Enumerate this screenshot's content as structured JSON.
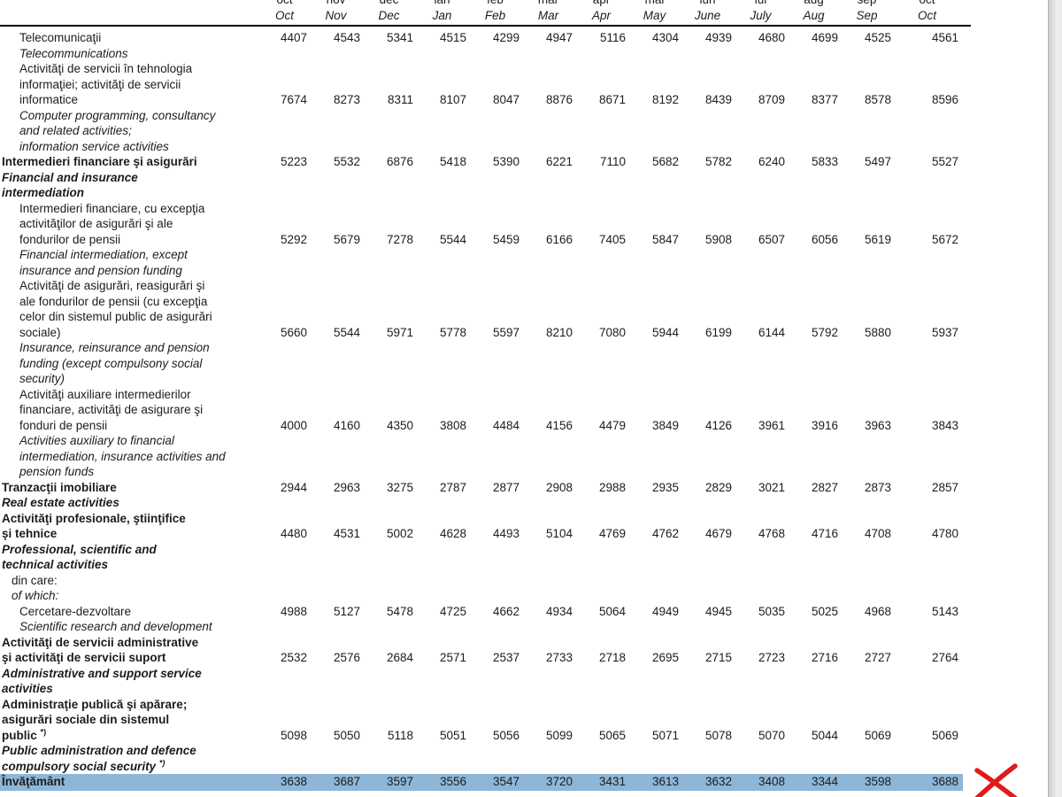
{
  "document": {
    "kind": "statistical-table-page",
    "language": "Romanian / English"
  },
  "colors": {
    "highlight_row": "#8db6d8",
    "annotation_x": "#e01b1b",
    "rule": "#000000"
  },
  "annotation": {
    "type": "red-x-mark"
  },
  "table": {
    "header": {
      "months_ro": [
        "oct",
        "nov",
        "dec",
        "ian",
        "feb",
        "mar",
        "apr",
        "mai",
        "iun",
        "iul",
        "aug",
        "sep",
        "oct"
      ],
      "months_en": [
        "Oct",
        "Nov",
        "Dec",
        "Jan",
        "Feb",
        "Mar",
        "Apr",
        "May",
        "June",
        "July",
        "Aug",
        "Sep",
        "Oct"
      ]
    },
    "rows": [
      {
        "indent": 1,
        "bold": false,
        "highlight": false,
        "ro": [
          "Telecomunicaţii"
        ],
        "en": [
          "Telecommunications"
        ],
        "values": [
          4407,
          4543,
          5341,
          4515,
          4299,
          4947,
          5116,
          4304,
          4939,
          4680,
          4699,
          4525,
          4561
        ]
      },
      {
        "indent": 1,
        "bold": false,
        "highlight": false,
        "ro": [
          "Activităţi de servicii în tehnologia",
          "informaţiei; activităţi de servicii",
          "informatice"
        ],
        "en": [
          "Computer programming, consultancy",
          "and related activities;",
          "information service activities"
        ],
        "values": [
          7674,
          8273,
          8311,
          8107,
          8047,
          8876,
          8671,
          8192,
          8439,
          8709,
          8377,
          8578,
          8596
        ]
      },
      {
        "indent": 0,
        "bold": true,
        "highlight": false,
        "ro": [
          "Intermedieri financiare şi asigurări"
        ],
        "en": [
          "Financial and insurance",
          "intermediation"
        ],
        "values": [
          5223,
          5532,
          6876,
          5418,
          5390,
          6221,
          7110,
          5682,
          5782,
          6240,
          5833,
          5497,
          5527
        ]
      },
      {
        "indent": 1,
        "bold": false,
        "highlight": false,
        "ro": [
          "Intermedieri financiare, cu excepţia",
          "activităţilor de asigurări şi ale",
          "fondurilor de pensii"
        ],
        "en": [
          "Financial intermediation, except",
          "insurance and pension funding"
        ],
        "values": [
          5292,
          5679,
          7278,
          5544,
          5459,
          6166,
          7405,
          5847,
          5908,
          6507,
          6056,
          5619,
          5672
        ]
      },
      {
        "indent": 1,
        "bold": false,
        "highlight": false,
        "ro": [
          "Activităţi de asigurări, reasigurări şi",
          "ale fondurilor de pensii (cu excepţia",
          "celor din sistemul public de asigurări",
          "sociale)"
        ],
        "en": [
          "Insurance, reinsurance and  pension",
          "funding (except compulsony social",
          "security)"
        ],
        "values": [
          5660,
          5544,
          5971,
          5778,
          5597,
          8210,
          7080,
          5944,
          6199,
          6144,
          5792,
          5880,
          5937
        ]
      },
      {
        "indent": 1,
        "bold": false,
        "highlight": false,
        "ro": [
          "Activităţi auxiliare intermedierilor",
          "financiare, activităţi de asigurare şi",
          "fonduri de pensii"
        ],
        "en": [
          "Activities auxiliary to financial",
          "intermediation, insurance activities and",
          "pension funds"
        ],
        "values": [
          4000,
          4160,
          4350,
          3808,
          4484,
          4156,
          4479,
          3849,
          4126,
          3961,
          3916,
          3963,
          3843
        ]
      },
      {
        "indent": 0,
        "bold": true,
        "highlight": false,
        "ro": [
          "Tranzacţii imobiliare"
        ],
        "en": [
          "Real estate activities"
        ],
        "values": [
          2944,
          2963,
          3275,
          2787,
          2877,
          2908,
          2988,
          2935,
          2829,
          3021,
          2827,
          2873,
          2857
        ]
      },
      {
        "indent": 0,
        "bold": true,
        "highlight": false,
        "ro": [
          "Activităţi profesionale, ştiinţifice",
          "şi tehnice"
        ],
        "en": [
          "Professional, scientific and",
          "technical activities"
        ],
        "values": [
          4480,
          4531,
          5002,
          4628,
          4493,
          5104,
          4769,
          4762,
          4679,
          4768,
          4716,
          4708,
          4780
        ]
      },
      {
        "indent": 0.5,
        "bold": false,
        "highlight": false,
        "ro": [
          "din care:"
        ],
        "en": [
          "of which:"
        ],
        "values": null
      },
      {
        "indent": 1,
        "bold": false,
        "highlight": false,
        "ro": [
          "Cercetare-dezvoltare"
        ],
        "en": [
          "Scientific research and development"
        ],
        "values": [
          4988,
          5127,
          5478,
          4725,
          4662,
          4934,
          5064,
          4949,
          4945,
          5035,
          5025,
          4968,
          5143
        ]
      },
      {
        "indent": 0,
        "bold": true,
        "highlight": false,
        "ro": [
          "Activităţi de servicii administrative",
          "şi activităţi de servicii suport"
        ],
        "en": [
          "Administrative and support service",
          "activities"
        ],
        "values": [
          2532,
          2576,
          2684,
          2571,
          2537,
          2733,
          2718,
          2695,
          2715,
          2723,
          2716,
          2727,
          2764
        ]
      },
      {
        "indent": 0,
        "bold": true,
        "highlight": false,
        "ro": [
          "Administraţie publică şi apărare;",
          "asigurări sociale din sistemul",
          "public *)"
        ],
        "en": [
          "Public administration and defence",
          "compulsory social security *)"
        ],
        "values": [
          5098,
          5050,
          5118,
          5051,
          5056,
          5099,
          5065,
          5071,
          5078,
          5070,
          5044,
          5069,
          5069
        ]
      },
      {
        "indent": 0,
        "bold": true,
        "highlight": true,
        "ro": [
          "Învăţământ"
        ],
        "en": [],
        "values": [
          3638,
          3687,
          3597,
          3556,
          3547,
          3720,
          3431,
          3613,
          3632,
          3408,
          3344,
          3598,
          3688
        ]
      }
    ]
  }
}
